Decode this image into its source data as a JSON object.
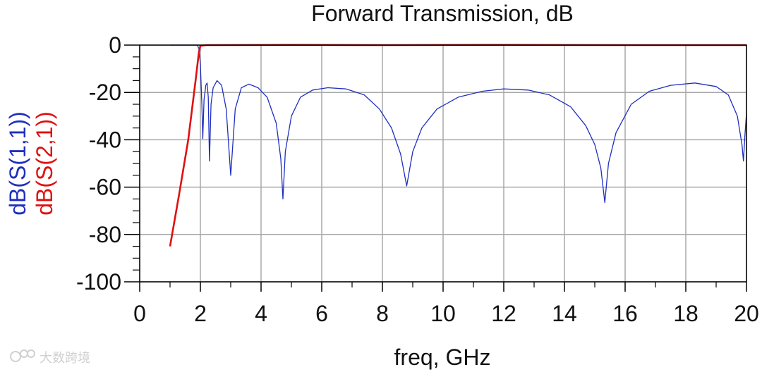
{
  "chart_data": {
    "type": "line",
    "title": "Forward Transmission, dB",
    "xlabel": "freq, GHz",
    "ylabels": [
      {
        "text": "dB(S(1,1))",
        "color": "#1f2fbf"
      },
      {
        "text": "dB(S(2,1))",
        "color": "#e01010"
      }
    ],
    "xlim": [
      0,
      20
    ],
    "ylim": [
      -100,
      0
    ],
    "xticks": [
      "0",
      "2",
      "4",
      "6",
      "8",
      "10",
      "12",
      "14",
      "16",
      "18",
      "20"
    ],
    "yticks": [
      "0",
      "-20",
      "-40",
      "-60",
      "-80",
      "-100"
    ],
    "grid": true,
    "series": [
      {
        "name": "dB(S(1,1))",
        "color": "#1f2fbf",
        "points": [
          [
            1.0,
            0.0
          ],
          [
            1.9,
            0.0
          ],
          [
            1.95,
            -1.5
          ],
          [
            2.0,
            -8
          ],
          [
            2.05,
            -25
          ],
          [
            2.08,
            -39.5
          ],
          [
            2.12,
            -23
          ],
          [
            2.18,
            -17
          ],
          [
            2.22,
            -16
          ],
          [
            2.26,
            -22
          ],
          [
            2.3,
            -49
          ],
          [
            2.35,
            -25
          ],
          [
            2.42,
            -18
          ],
          [
            2.55,
            -15
          ],
          [
            2.7,
            -17
          ],
          [
            2.85,
            -27
          ],
          [
            3.0,
            -55
          ],
          [
            3.15,
            -27
          ],
          [
            3.35,
            -18
          ],
          [
            3.6,
            -16.5
          ],
          [
            3.9,
            -18
          ],
          [
            4.2,
            -22
          ],
          [
            4.5,
            -33
          ],
          [
            4.65,
            -48
          ],
          [
            4.72,
            -65
          ],
          [
            4.8,
            -45
          ],
          [
            5.0,
            -30
          ],
          [
            5.3,
            -22
          ],
          [
            5.7,
            -19
          ],
          [
            6.2,
            -18
          ],
          [
            6.8,
            -18.5
          ],
          [
            7.4,
            -21
          ],
          [
            7.9,
            -27
          ],
          [
            8.3,
            -35
          ],
          [
            8.6,
            -46
          ],
          [
            8.8,
            -59.5
          ],
          [
            9.0,
            -45
          ],
          [
            9.3,
            -35
          ],
          [
            9.8,
            -27
          ],
          [
            10.5,
            -22
          ],
          [
            11.3,
            -19.5
          ],
          [
            12.0,
            -18.5
          ],
          [
            12.8,
            -19
          ],
          [
            13.5,
            -21
          ],
          [
            14.2,
            -26
          ],
          [
            14.7,
            -34
          ],
          [
            15.0,
            -42
          ],
          [
            15.2,
            -52
          ],
          [
            15.33,
            -66.5
          ],
          [
            15.45,
            -50
          ],
          [
            15.7,
            -37
          ],
          [
            16.2,
            -25
          ],
          [
            16.8,
            -19.5
          ],
          [
            17.5,
            -17
          ],
          [
            18.3,
            -16
          ],
          [
            19.0,
            -17.5
          ],
          [
            19.4,
            -21
          ],
          [
            19.7,
            -30
          ],
          [
            19.85,
            -42
          ],
          [
            19.9,
            -49
          ],
          [
            19.95,
            -38
          ],
          [
            20.0,
            -29
          ]
        ]
      },
      {
        "name": "dB(S(2,1))",
        "color": "#e01010",
        "points": [
          [
            1.0,
            -85
          ],
          [
            1.3,
            -63
          ],
          [
            1.6,
            -40
          ],
          [
            1.85,
            -14
          ],
          [
            1.95,
            -3
          ],
          [
            2.0,
            -0.3
          ],
          [
            2.2,
            0.0
          ],
          [
            5.0,
            0.1
          ],
          [
            8.0,
            0.0
          ],
          [
            12.0,
            0.1
          ],
          [
            16.0,
            0.0
          ],
          [
            20.0,
            0.0
          ]
        ]
      }
    ]
  },
  "watermark": {
    "text": "大数跨境",
    "icon": "brand-logo-icon"
  }
}
